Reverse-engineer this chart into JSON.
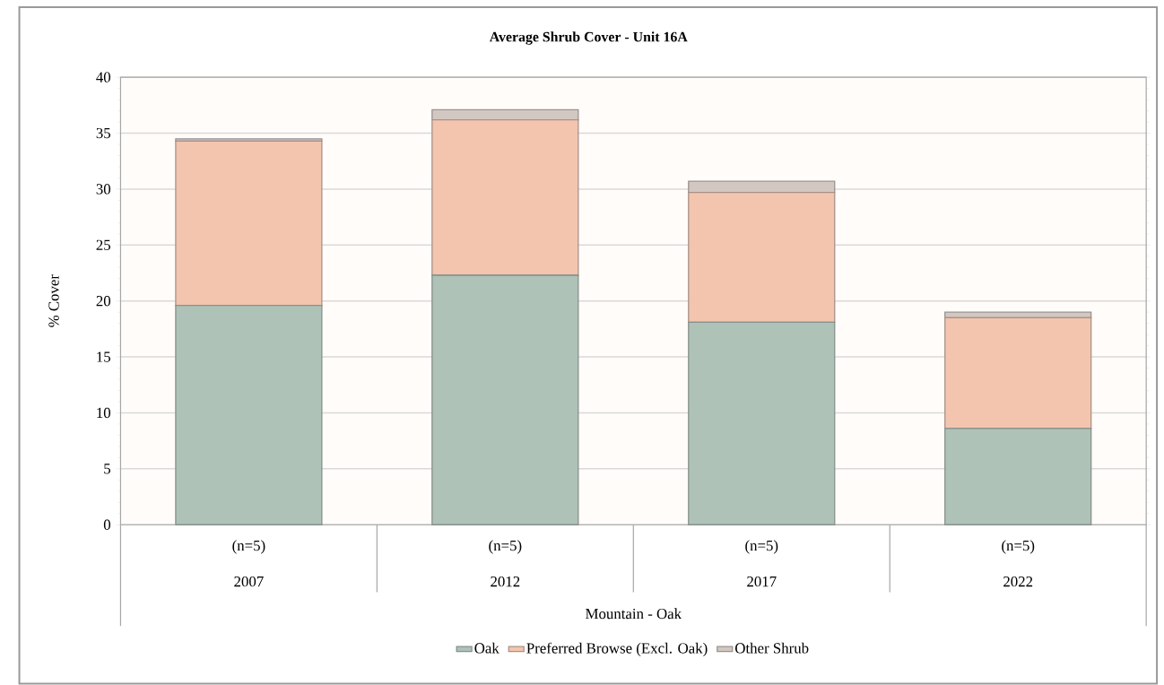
{
  "chart_data": {
    "type": "bar",
    "title": "Average Shrub Cover - Unit 16A",
    "xlabel": "Mountain - Oak",
    "ylabel": "% Cover",
    "categories": [
      "2007",
      "2012",
      "2017",
      "2022"
    ],
    "stacked": true,
    "series": [
      {
        "name": "Oak",
        "color": "#aec2b8",
        "values": [
          19.6,
          22.3,
          18.1,
          8.6
        ]
      },
      {
        "name": "Preferred Browse (Excl. Oak)",
        "color": "#f3c5ae",
        "values": [
          14.7,
          13.9,
          11.6,
          9.9
        ]
      },
      {
        "name": "Other Shrub",
        "color": "#d3c7c1",
        "values": [
          0.2,
          0.9,
          1.0,
          0.5
        ]
      }
    ],
    "annotations": [
      "(n=5)",
      "(n=5)",
      "(n=5)",
      "(n=5)"
    ],
    "ylim": [
      0,
      40
    ],
    "yticks": [
      0,
      5,
      10,
      15,
      20,
      25,
      30,
      35,
      40
    ],
    "grid": "y",
    "legend": "bottom"
  }
}
